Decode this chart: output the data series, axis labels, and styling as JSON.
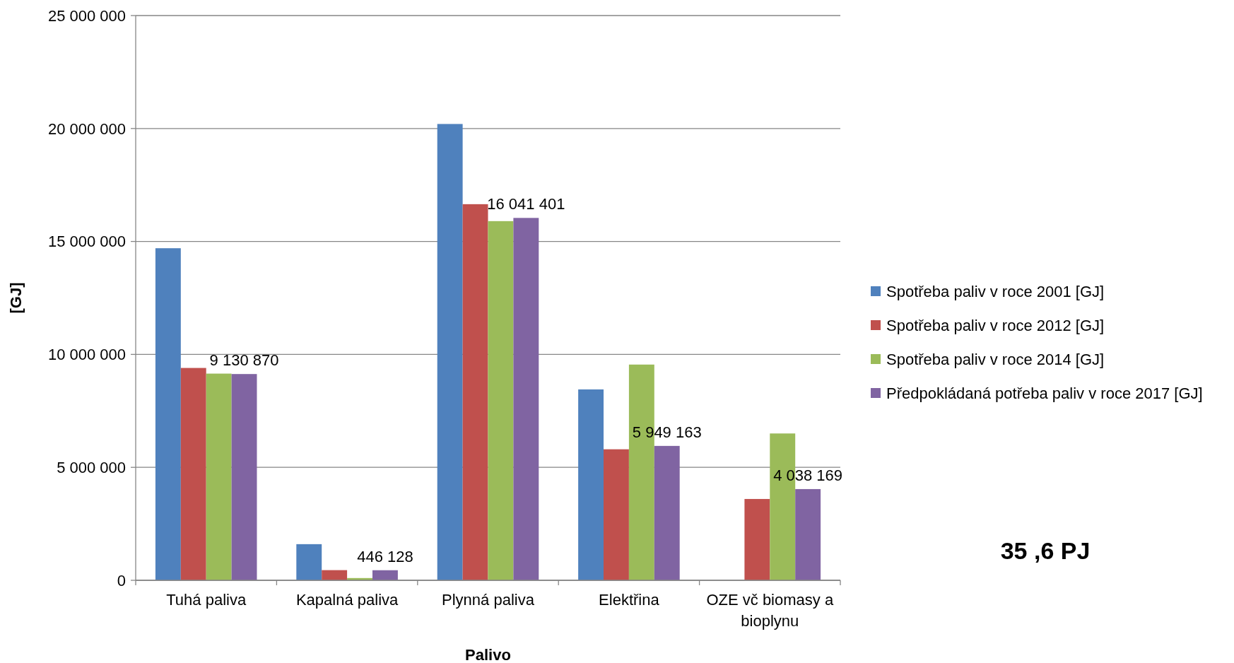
{
  "chart_data": {
    "type": "bar",
    "xlabel": "Palivo",
    "ylabel": "[GJ]",
    "categories": [
      "Tuhá paliva",
      "Kapalná paliva",
      "Plynná paliva",
      "Elektřina",
      "OZE vč biomasy a bioplynu"
    ],
    "series": [
      {
        "name": "Spotřeba paliv v roce 2001 [GJ]",
        "color": "#4f81bd",
        "values": [
          14700000,
          1600000,
          20200000,
          8450000,
          null
        ]
      },
      {
        "name": "Spotřeba paliv v roce 2012 [GJ]",
        "color": "#c0504d",
        "values": [
          9400000,
          450000,
          16650000,
          5800000,
          3600000
        ]
      },
      {
        "name": "Spotřeba paliv v roce 2014 [GJ]",
        "color": "#9bbb59",
        "values": [
          9150000,
          100000,
          15900000,
          9550000,
          6500000
        ]
      },
      {
        "name": "Předpokládaná potřeba paliv v roce 2017 [GJ]",
        "color": "#8064a2",
        "values": [
          9130870,
          446128,
          16041401,
          5949163,
          4038169
        ],
        "value_labels": [
          "9 130 870",
          "446 128",
          "16 041 401",
          "5 949 163",
          "4 038 169"
        ]
      }
    ],
    "ylim": [
      0,
      25000000
    ],
    "yticks": [
      {
        "value": 0,
        "label": "0"
      },
      {
        "value": 5000000,
        "label": "5 000 000"
      },
      {
        "value": 10000000,
        "label": "10 000 000"
      },
      {
        "value": 15000000,
        "label": "15 000 000"
      },
      {
        "value": 20000000,
        "label": "20 000 000"
      },
      {
        "value": 25000000,
        "label": "25 000 000"
      }
    ],
    "grid": "y",
    "legend": "right",
    "annotations": [
      "35 ,6 PJ"
    ]
  }
}
